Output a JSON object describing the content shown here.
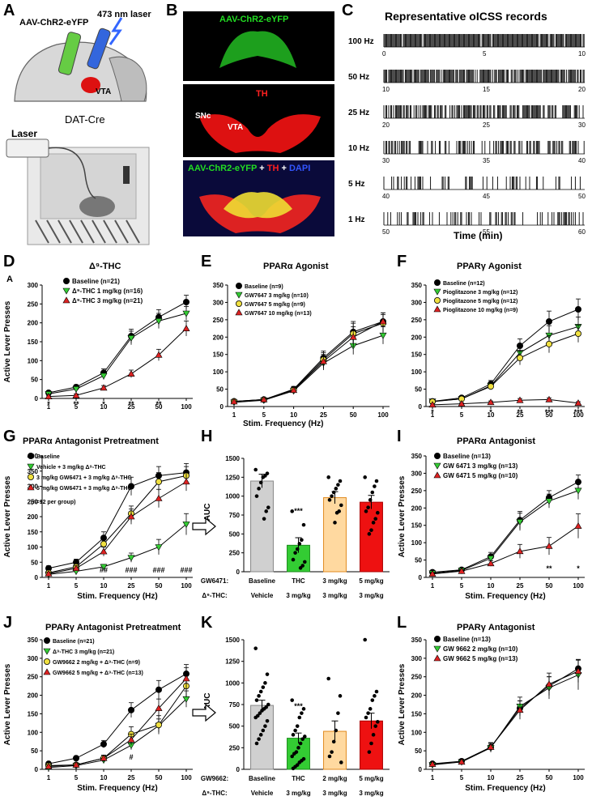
{
  "panel_letters": [
    "A",
    "B",
    "C",
    "D",
    "E",
    "F",
    "G",
    "H",
    "I",
    "J",
    "K",
    "L"
  ],
  "panel_a": {
    "virus_label": "AAV-ChR2-eYFP",
    "laser_label": "473 nm laser",
    "vta_label": "VTA",
    "mouse_label": "DAT-Cre",
    "laser_box_label": "Laser"
  },
  "panel_b": {
    "top_label": "AAV-ChR2-eYFP",
    "mid_label": "TH",
    "snc_label": "SNc",
    "vta_label": "VTA",
    "bottom_label_1": "AAV-ChR2-eYFP",
    "bottom_plus_1": "+",
    "bottom_label_2": "TH",
    "bottom_plus_2": "+",
    "bottom_label_3": "DAPI",
    "colors": {
      "green": "#22dd22",
      "red": "#ff2020",
      "blue": "#3355ff"
    }
  },
  "panel_c": {
    "title": "Representative oICSS records",
    "xlabel": "Time (min)",
    "rows": [
      {
        "freq": "100 Hz",
        "ticks": [
          "0",
          "5",
          "10"
        ],
        "density": 0.95
      },
      {
        "freq": "50 Hz",
        "ticks": [
          "10",
          "15",
          "20"
        ],
        "density": 0.85
      },
      {
        "freq": "25 Hz",
        "ticks": [
          "20",
          "25",
          "30"
        ],
        "density": 0.6
      },
      {
        "freq": "10 Hz",
        "ticks": [
          "30",
          "35",
          "40"
        ],
        "density": 0.45
      },
      {
        "freq": "5 Hz",
        "ticks": [
          "40",
          "45",
          "50"
        ],
        "density": 0.25
      },
      {
        "freq": "1 Hz",
        "ticks": [
          "50",
          "55",
          "60"
        ],
        "density": 0.3
      }
    ]
  },
  "common": {
    "ylabel": "Active Lever Presses",
    "xlabel": "Stim. Frequency (Hz)",
    "auc_label": "ΔAUC"
  },
  "chart_data": [
    {
      "panel": "D",
      "type": "line",
      "title": "Δ⁹-THC",
      "corner_letter": "A",
      "x": [
        "1",
        "5",
        "10",
        "25",
        "50",
        "100"
      ],
      "ylim": [
        0,
        300
      ],
      "yticks": [
        "0",
        "50",
        "100",
        "150",
        "200",
        "250",
        "300"
      ],
      "series": [
        {
          "name": "Baseline (n=21)",
          "color": "#000000",
          "marker": "circle",
          "values": [
            15,
            30,
            68,
            165,
            215,
            255
          ],
          "err": [
            5,
            6,
            10,
            18,
            20,
            18
          ]
        },
        {
          "name": "Δ⁹-THC 1 mg/kg (n=16)",
          "color": "#33cc33",
          "marker": "tri-down",
          "values": [
            12,
            25,
            60,
            160,
            205,
            225
          ],
          "err": [
            5,
            6,
            10,
            18,
            20,
            18
          ]
        },
        {
          "name": "Δ⁹-THC 3 mg/kg (n=21)",
          "color": "#dd2222",
          "marker": "tri-up",
          "values": [
            5,
            8,
            28,
            65,
            115,
            185
          ],
          "err": [
            3,
            4,
            6,
            10,
            15,
            20
          ]
        }
      ],
      "sig": [
        {
          "x": 0,
          "text": "*"
        },
        {
          "x": 1,
          "text": "**"
        },
        {
          "x": 2,
          "text": "*"
        },
        {
          "x": 3,
          "text": "**"
        },
        {
          "x": 4,
          "text": "**"
        }
      ]
    },
    {
      "panel": "E",
      "type": "line",
      "title": "PPARα Agonist",
      "x": [
        "1",
        "5",
        "10",
        "25",
        "50",
        "100"
      ],
      "ylim": [
        0,
        350
      ],
      "yticks": [
        "0",
        "50",
        "100",
        "150",
        "200",
        "250",
        "300",
        "350"
      ],
      "series": [
        {
          "name": "Baseline (n=9)",
          "color": "#000000",
          "marker": "circle",
          "values": [
            15,
            20,
            50,
            140,
            215,
            245
          ],
          "err": [
            5,
            5,
            8,
            20,
            30,
            25
          ]
        },
        {
          "name": "GW7647 3 mg/kg (n=10)",
          "color": "#33cc33",
          "marker": "tri-down",
          "values": [
            12,
            18,
            45,
            125,
            175,
            205
          ],
          "err": [
            5,
            5,
            8,
            20,
            25,
            25
          ]
        },
        {
          "name": "GW7647 5 mg/kg (n=9)",
          "color": "#f0e040",
          "marker": "circle",
          "values": [
            15,
            20,
            48,
            135,
            210,
            240
          ],
          "err": [
            5,
            5,
            8,
            20,
            30,
            25
          ]
        },
        {
          "name": "GW7647 10 mg/kg (n=13)",
          "color": "#dd2222",
          "marker": "tri-up",
          "values": [
            14,
            20,
            47,
            130,
            200,
            245
          ],
          "err": [
            5,
            5,
            8,
            20,
            30,
            25
          ]
        }
      ],
      "sig": []
    },
    {
      "panel": "F",
      "type": "line",
      "title": "PPARγ Agonist",
      "x": [
        "1",
        "5",
        "10",
        "25",
        "50",
        "100"
      ],
      "ylim": [
        0,
        350
      ],
      "yticks": [
        "0",
        "50",
        "100",
        "150",
        "200",
        "250",
        "300",
        "350"
      ],
      "series": [
        {
          "name": "Baseline (n=12)",
          "color": "#000000",
          "marker": "circle",
          "values": [
            15,
            25,
            65,
            175,
            245,
            280
          ],
          "err": [
            5,
            6,
            10,
            20,
            30,
            30
          ]
        },
        {
          "name": "Pioglitazone 3 mg/kg (n=12)",
          "color": "#33cc33",
          "marker": "tri-down",
          "values": [
            15,
            22,
            60,
            155,
            205,
            230
          ],
          "err": [
            5,
            6,
            10,
            20,
            28,
            28
          ]
        },
        {
          "name": "Pioglitazone 5 mg/kg (n=12)",
          "color": "#f0e040",
          "marker": "circle",
          "values": [
            14,
            22,
            58,
            140,
            180,
            210
          ],
          "err": [
            5,
            6,
            10,
            20,
            25,
            25
          ]
        },
        {
          "name": "Pioglitazone 10 mg/kg (n=9)",
          "color": "#dd2222",
          "marker": "tri-up",
          "values": [
            5,
            8,
            12,
            18,
            20,
            10
          ],
          "err": [
            3,
            3,
            4,
            5,
            5,
            4
          ]
        }
      ],
      "sig": [
        {
          "x": 0,
          "text": "*"
        },
        {
          "x": 2,
          "text": "*"
        },
        {
          "x": 3,
          "text": "**"
        },
        {
          "x": 4,
          "text": "***"
        },
        {
          "x": 5,
          "text": "***"
        }
      ]
    },
    {
      "panel": "G",
      "type": "line",
      "title": "PPARα Antagonist Pretreatment",
      "note": "(n=12 per group)",
      "x": [
        "1",
        "5",
        "10",
        "25",
        "50",
        "100"
      ],
      "ylim": [
        0,
        400
      ],
      "yticks": [
        "0",
        "50",
        "100",
        "150",
        "200",
        "250",
        "300",
        "350",
        "400"
      ],
      "series": [
        {
          "name": "Baseline",
          "color": "#000000",
          "marker": "circle",
          "values": [
            30,
            50,
            130,
            300,
            335,
            345
          ],
          "err": [
            8,
            10,
            20,
            30,
            30,
            30
          ]
        },
        {
          "name": "Vehicle + 3 mg/kg Δ⁹-THC",
          "color": "#33cc33",
          "marker": "tri-down",
          "values": [
            10,
            20,
            35,
            65,
            100,
            175
          ],
          "err": [
            4,
            5,
            8,
            15,
            25,
            35
          ]
        },
        {
          "name": "3 mg/kg GW6471 + 3 mg/kg Δ⁹-THC",
          "color": "#f0e040",
          "marker": "circle",
          "values": [
            15,
            35,
            110,
            210,
            315,
            335
          ],
          "err": [
            5,
            8,
            20,
            25,
            30,
            30
          ]
        },
        {
          "name": "5 mg/kg GW6471 + 3 mg/kg Δ⁹-THC",
          "color": "#dd2222",
          "marker": "tri-up",
          "values": [
            12,
            30,
            85,
            200,
            260,
            315
          ],
          "err": [
            5,
            8,
            15,
            25,
            30,
            30
          ]
        }
      ],
      "sig": [
        {
          "x": 2,
          "text": "##"
        },
        {
          "x": 3,
          "text": "###"
        },
        {
          "x": 4,
          "text": "###"
        },
        {
          "x": 5,
          "text": "###"
        }
      ]
    },
    {
      "panel": "H",
      "type": "bar",
      "ylim": [
        0,
        1500
      ],
      "yticks": [
        "0",
        "250",
        "500",
        "750",
        "1000",
        "1250",
        "1500"
      ],
      "row1_label": "GW6471:",
      "row2_label": "Δ⁹-THC:",
      "categories": [
        "Baseline",
        "THC",
        "3 mg/kg",
        "5 mg/kg"
      ],
      "row2": [
        "Vehicle",
        "3 mg/kg",
        "3 mg/kg",
        "3 mg/kg"
      ],
      "values": [
        1200,
        350,
        980,
        920
      ],
      "err": [
        90,
        100,
        80,
        90
      ],
      "colors": [
        "#d0d0d0",
        "#33cc33",
        "#ffd9a0",
        "#ee1111"
      ],
      "edge": [
        "#888888",
        "#1a8a1a",
        "#e08a20",
        "#aa0000"
      ],
      "points": [
        [
          1350,
          1300,
          1270,
          1250,
          1180,
          1100,
          1000,
          850,
          800,
          700
        ],
        [
          800,
          620,
          420,
          370,
          300,
          250,
          160,
          130,
          80,
          50
        ],
        [
          1250,
          1200,
          1150,
          1100,
          1050,
          1000,
          950,
          880,
          800,
          780,
          650
        ],
        [
          1250,
          1200,
          1130,
          1050,
          950,
          850,
          800,
          780,
          700,
          650,
          550,
          500
        ]
      ],
      "sig": [
        {
          "x": 1,
          "text": "***"
        }
      ]
    },
    {
      "panel": "I",
      "type": "line",
      "title": "PPARα Antagonist",
      "x": [
        "1",
        "5",
        "10",
        "25",
        "50",
        "100"
      ],
      "ylim": [
        0,
        350
      ],
      "yticks": [
        "0",
        "50",
        "100",
        "150",
        "200",
        "250",
        "300",
        "350"
      ],
      "series": [
        {
          "name": "Baseline (n=13)",
          "color": "#000000",
          "marker": "circle",
          "values": [
            15,
            22,
            60,
            165,
            230,
            275
          ],
          "err": [
            5,
            5,
            12,
            25,
            20,
            20
          ]
        },
        {
          "name": "GW 6471 3 mg/kg (n=13)",
          "color": "#33cc33",
          "marker": "tri-down",
          "values": [
            12,
            20,
            55,
            160,
            220,
            250
          ],
          "err": [
            5,
            5,
            10,
            25,
            20,
            25
          ]
        },
        {
          "name": "GW 6471 5 mg/kg (n=10)",
          "color": "#dd2222",
          "marker": "tri-up",
          "values": [
            10,
            18,
            40,
            75,
            90,
            148
          ],
          "err": [
            4,
            5,
            8,
            20,
            25,
            35
          ]
        }
      ],
      "sig": [
        {
          "x": 4,
          "text": "**"
        },
        {
          "x": 5,
          "text": "*"
        }
      ]
    },
    {
      "panel": "J",
      "type": "line",
      "title": "PPARγ Antagonist Pretreatment",
      "x": [
        "1",
        "5",
        "10",
        "25",
        "50",
        "100"
      ],
      "ylim": [
        0,
        350
      ],
      "yticks": [
        "0",
        "50",
        "100",
        "150",
        "200",
        "250",
        "300",
        "350"
      ],
      "series": [
        {
          "name": "Baseline (n=21)",
          "color": "#000000",
          "marker": "circle",
          "values": [
            15,
            30,
            68,
            160,
            215,
            258
          ],
          "err": [
            5,
            6,
            10,
            20,
            25,
            25
          ]
        },
        {
          "name": "Δ⁹-THC 3 mg/kg (n=21)",
          "color": "#33cc33",
          "marker": "tri-down",
          "values": [
            5,
            10,
            25,
            65,
            118,
            190
          ],
          "err": [
            3,
            4,
            6,
            12,
            18,
            22
          ]
        },
        {
          "name": "GW9662 2 mg/kg + Δ⁹-THC (n=9)",
          "color": "#f0e040",
          "marker": "circle",
          "values": [
            10,
            12,
            30,
            95,
            120,
            225
          ],
          "err": [
            4,
            5,
            8,
            20,
            25,
            30
          ]
        },
        {
          "name": "GW9662 5 mg/kg + Δ⁹-THC (n=13)",
          "color": "#dd2222",
          "marker": "tri-up",
          "values": [
            8,
            12,
            30,
            80,
            165,
            245
          ],
          "err": [
            4,
            5,
            8,
            15,
            25,
            30
          ]
        }
      ],
      "sig": [
        {
          "x": 3,
          "text": "#"
        }
      ]
    },
    {
      "panel": "K",
      "type": "bar",
      "ylim": [
        0,
        1500
      ],
      "yticks": [
        "0",
        "250",
        "500",
        "750",
        "1000",
        "1250",
        "1500"
      ],
      "row1_label": "GW9662:",
      "row2_label": "Δ⁹-THC:",
      "categories": [
        "Baseline",
        "THC",
        "2 mg/kg",
        "5 mg/kg"
      ],
      "row2": [
        "Vehicle",
        "3 mg/kg",
        "3 mg/kg",
        "3 mg/kg"
      ],
      "values": [
        740,
        360,
        440,
        560
      ],
      "err": [
        60,
        60,
        120,
        90
      ],
      "colors": [
        "#d0d0d0",
        "#33cc33",
        "#ffd9a0",
        "#ee1111"
      ],
      "edge": [
        "#888888",
        "#1a8a1a",
        "#e08a20",
        "#aa0000"
      ],
      "points": [
        [
          1400,
          1100,
          1000,
          950,
          900,
          850,
          800,
          750,
          720,
          700,
          680,
          650,
          620,
          600,
          560,
          500,
          450,
          400,
          350,
          300
        ],
        [
          800,
          700,
          650,
          600,
          500,
          450,
          400,
          380,
          350,
          300,
          250,
          200,
          180,
          150,
          120,
          100,
          80,
          50,
          30,
          10
        ],
        [
          1050,
          850,
          650,
          450,
          320,
          200,
          150,
          80
        ],
        [
          1500,
          900,
          850,
          800,
          700,
          650,
          600,
          550,
          500,
          400,
          300,
          200
        ]
      ],
      "sig": [
        {
          "x": 1,
          "text": "***"
        }
      ]
    },
    {
      "panel": "L",
      "type": "line",
      "title": "PPARγ Antagonist",
      "x": [
        "1",
        "5",
        "10",
        "25",
        "50",
        "100"
      ],
      "ylim": [
        0,
        350
      ],
      "yticks": [
        "0",
        "50",
        "100",
        "150",
        "200",
        "250",
        "300",
        "350"
      ],
      "series": [
        {
          "name": "Baseline (n=13)",
          "color": "#000000",
          "marker": "circle",
          "values": [
            15,
            22,
            60,
            165,
            225,
            272
          ],
          "err": [
            5,
            5,
            12,
            20,
            25,
            25
          ]
        },
        {
          "name": "GW 9662 2 mg/kg (n=10)",
          "color": "#33cc33",
          "marker": "tri-down",
          "values": [
            12,
            20,
            58,
            170,
            220,
            255
          ],
          "err": [
            5,
            5,
            12,
            25,
            30,
            40
          ]
        },
        {
          "name": "GW 9662 5 mg/kg (n=13)",
          "color": "#dd2222",
          "marker": "tri-up",
          "values": [
            14,
            20,
            60,
            160,
            230,
            265
          ],
          "err": [
            5,
            5,
            12,
            25,
            30,
            30
          ]
        }
      ],
      "sig": []
    }
  ]
}
